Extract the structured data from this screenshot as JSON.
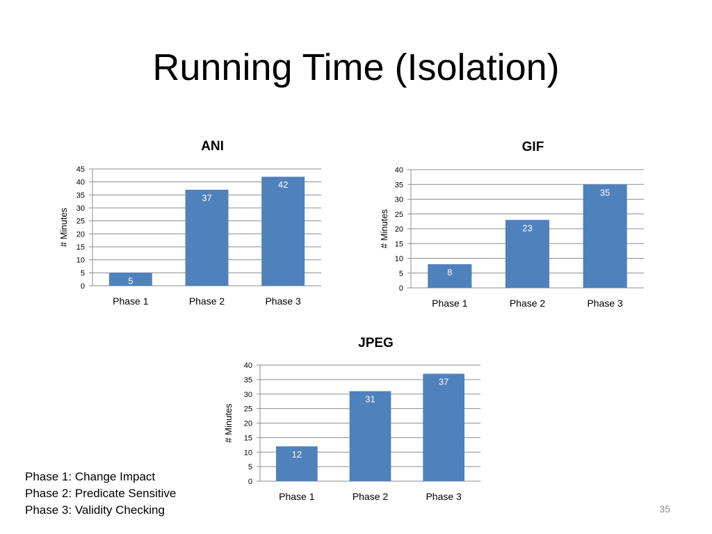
{
  "slide": {
    "title": "Running Time (Isolation)",
    "legend": [
      "Phase 1: Change Impact",
      "Phase 2: Predicate Sensitive",
      "Phase 3: Validity Checking"
    ],
    "page_number": "35"
  },
  "colors": {
    "bar": "#4f81bd",
    "grid": "#8c8c8c",
    "label_on_bar": "#ffffff"
  },
  "chart_data": [
    {
      "type": "bar",
      "title": "ANI",
      "ylabel": "# Minutes",
      "xlabel": "",
      "categories": [
        "Phase 1",
        "Phase 2",
        "Phase 3"
      ],
      "values": [
        5,
        37,
        42
      ],
      "ylim": [
        0,
        45
      ],
      "ystep": 5,
      "grid": true
    },
    {
      "type": "bar",
      "title": "GIF",
      "ylabel": "# Minutes",
      "xlabel": "",
      "categories": [
        "Phase 1",
        "Phase 2",
        "Phase 3"
      ],
      "values": [
        8,
        23,
        35
      ],
      "ylim": [
        0,
        40
      ],
      "ystep": 5,
      "grid": true
    },
    {
      "type": "bar",
      "title": "JPEG",
      "ylabel": "# Minutes",
      "xlabel": "",
      "categories": [
        "Phase 1",
        "Phase 2",
        "Phase 3"
      ],
      "values": [
        12,
        31,
        37
      ],
      "ylim": [
        0,
        40
      ],
      "ystep": 5,
      "grid": true
    }
  ]
}
